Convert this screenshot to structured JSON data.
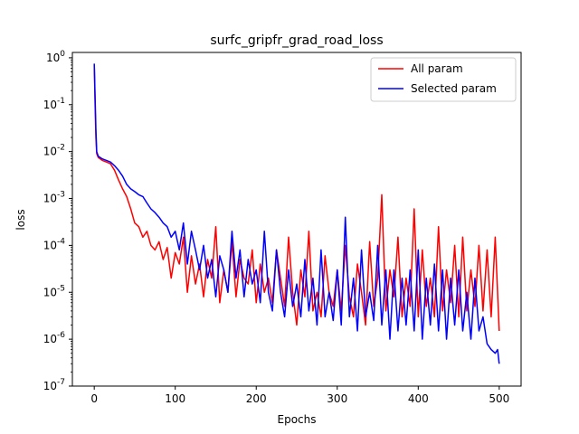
{
  "chart_data": {
    "type": "line",
    "title": "surfc_gripfr_grad_road_loss",
    "xlabel": "Epochs",
    "ylabel": "loss",
    "xlim": [
      -27,
      527
    ],
    "ylim": [
      1e-07,
      1.3
    ],
    "yscale": "log",
    "xticks": [
      0,
      100,
      200,
      300,
      400,
      500
    ],
    "yticks": [
      {
        "value": 1,
        "label": "10^0"
      },
      {
        "value": 0.1,
        "label": "10^-1"
      },
      {
        "value": 0.01,
        "label": "10^-2"
      },
      {
        "value": 0.001,
        "label": "10^-3"
      },
      {
        "value": 0.0001,
        "label": "10^-4"
      },
      {
        "value": 1e-05,
        "label": "10^-5"
      },
      {
        "value": 1e-06,
        "label": "10^-6"
      },
      {
        "value": 1e-07,
        "label": "10^-7"
      }
    ],
    "grid": false,
    "legend": "upper right",
    "series": [
      {
        "name": "All param",
        "color": "#ff0000",
        "x": [
          0,
          1,
          2,
          3,
          5,
          10,
          15,
          20,
          25,
          30,
          35,
          40,
          45,
          50,
          55,
          60,
          65,
          70,
          75,
          80,
          85,
          90,
          95,
          100,
          105,
          110,
          115,
          120,
          125,
          130,
          135,
          140,
          145,
          150,
          155,
          160,
          165,
          170,
          175,
          180,
          185,
          190,
          195,
          200,
          205,
          210,
          215,
          220,
          225,
          230,
          235,
          240,
          245,
          250,
          255,
          260,
          265,
          270,
          275,
          280,
          285,
          290,
          295,
          300,
          305,
          310,
          315,
          320,
          325,
          330,
          335,
          340,
          345,
          350,
          355,
          360,
          365,
          370,
          375,
          380,
          385,
          390,
          395,
          400,
          405,
          410,
          415,
          420,
          425,
          430,
          435,
          440,
          445,
          450,
          455,
          460,
          465,
          470,
          475,
          480,
          485,
          490,
          495,
          500
        ],
        "y": [
          0.7,
          0.1,
          0.02,
          0.009,
          0.0075,
          0.0065,
          0.006,
          0.0055,
          0.004,
          0.0025,
          0.0016,
          0.0011,
          0.0006,
          0.0003,
          0.00025,
          0.00015,
          0.0002,
          0.0001,
          8e-05,
          0.00012,
          5e-05,
          9e-05,
          2e-05,
          7e-05,
          4e-05,
          0.00015,
          1e-05,
          6e-05,
          1.5e-05,
          4e-05,
          8e-06,
          5e-05,
          2e-05,
          0.00025,
          6e-06,
          3e-05,
          1e-05,
          0.00012,
          8e-06,
          5e-05,
          2e-05,
          1.5e-05,
          8e-05,
          6e-06,
          4e-05,
          1e-05,
          2e-05,
          6e-06,
          8e-05,
          2e-05,
          5e-06,
          0.00015,
          1e-05,
          2e-06,
          3e-05,
          8e-06,
          0.0002,
          4e-06,
          1e-05,
          3e-06,
          6e-05,
          1e-05,
          5e-06,
          3e-05,
          4e-06,
          0.0001,
          8e-06,
          3e-06,
          4e-05,
          1e-05,
          2e-06,
          0.00012,
          5e-06,
          2e-05,
          0.0012,
          4e-06,
          3e-05,
          8e-06,
          0.00015,
          3e-06,
          2e-05,
          5e-06,
          0.0006,
          3e-06,
          8e-05,
          5e-06,
          2e-05,
          3e-06,
          0.00025,
          4e-06,
          3e-05,
          6e-06,
          0.0001,
          3e-06,
          0.00015,
          4e-06,
          3e-05,
          5e-06,
          0.0001,
          4e-06,
          8e-05,
          3e-06,
          0.00015,
          1.5e-06
        ]
      },
      {
        "name": "Selected param",
        "color": "#0000ff",
        "x": [
          0,
          1,
          2,
          3,
          5,
          10,
          15,
          20,
          25,
          30,
          35,
          40,
          45,
          50,
          55,
          60,
          65,
          70,
          75,
          80,
          85,
          90,
          95,
          100,
          105,
          110,
          115,
          120,
          125,
          130,
          135,
          140,
          145,
          150,
          155,
          160,
          165,
          170,
          175,
          180,
          185,
          190,
          195,
          200,
          205,
          210,
          215,
          220,
          225,
          230,
          235,
          240,
          245,
          250,
          255,
          260,
          265,
          270,
          275,
          280,
          285,
          290,
          295,
          300,
          305,
          310,
          315,
          320,
          325,
          330,
          335,
          340,
          345,
          350,
          355,
          360,
          365,
          370,
          375,
          380,
          385,
          390,
          395,
          400,
          405,
          410,
          415,
          420,
          425,
          430,
          435,
          440,
          445,
          450,
          455,
          460,
          465,
          470,
          475,
          480,
          485,
          490,
          495,
          498,
          500
        ],
        "y": [
          0.75,
          0.15,
          0.03,
          0.01,
          0.008,
          0.007,
          0.0065,
          0.006,
          0.005,
          0.004,
          0.003,
          0.002,
          0.0016,
          0.0014,
          0.0012,
          0.0011,
          0.0008,
          0.0006,
          0.0005,
          0.0004,
          0.0003,
          0.00025,
          0.00015,
          0.0002,
          8e-05,
          0.0003,
          4e-05,
          0.0002,
          8e-05,
          3e-05,
          0.0001,
          2e-05,
          5e-05,
          8e-06,
          6e-05,
          3e-05,
          1e-05,
          0.0002,
          2e-05,
          8e-05,
          8e-06,
          5e-05,
          1.5e-05,
          3e-05,
          6e-06,
          0.0002,
          1e-05,
          4e-06,
          8e-05,
          1e-05,
          3e-06,
          3e-05,
          5e-06,
          1.5e-05,
          3e-06,
          5e-05,
          4e-06,
          2e-05,
          2e-06,
          8e-05,
          3e-06,
          1e-05,
          2.5e-06,
          3e-05,
          2e-06,
          0.0004,
          3e-06,
          2e-05,
          1.5e-06,
          8e-05,
          3e-06,
          1e-05,
          2.5e-06,
          0.0001,
          2e-06,
          3e-05,
          1e-06,
          3e-05,
          1.5e-06,
          2e-05,
          2e-06,
          3e-05,
          1.5e-06,
          8e-05,
          1e-06,
          2e-05,
          2e-06,
          4e-05,
          1.5e-06,
          3e-05,
          1e-06,
          2e-05,
          2e-06,
          3e-05,
          1.5e-06,
          1e-05,
          1e-06,
          2e-05,
          1.5e-06,
          3e-06,
          8e-07,
          6e-07,
          5e-07,
          6e-07,
          3e-07
        ]
      }
    ]
  }
}
